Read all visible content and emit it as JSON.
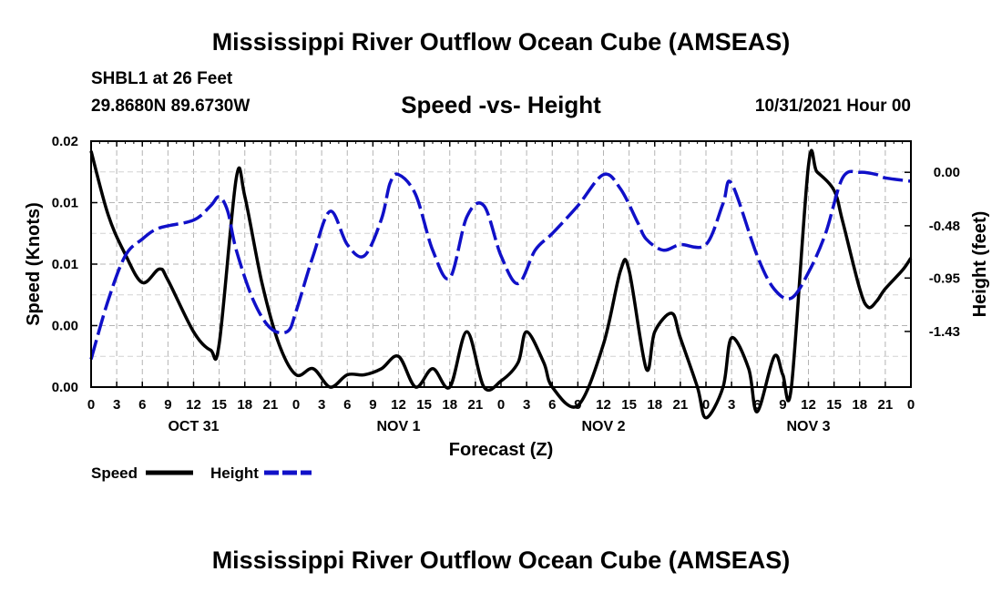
{
  "header": {
    "title": "Mississippi River Outflow Ocean Cube (AMSEAS)",
    "station": "SHBL1 at 26 Feet",
    "coords": "29.8680N  89.6730W",
    "subtitle": "Speed -vs- Height",
    "datetime": "10/31/2021 Hour 00",
    "bottom_title": "Mississippi River Outflow Ocean Cube (AMSEAS)"
  },
  "chart_data": {
    "type": "line",
    "title": "Speed -vs- Height",
    "xlabel": "Forecast (Z)",
    "ylabel": "Speed (Knots)",
    "ylabel_right": "Height (feet)",
    "x_range": [
      0,
      96
    ],
    "ylim": [
      0.0,
      0.02
    ],
    "ylim_right": [
      -1.93,
      0.28
    ],
    "x_tick_labels": [
      "0",
      "3",
      "6",
      "9",
      "12",
      "15",
      "18",
      "21",
      "0",
      "3",
      "6",
      "9",
      "12",
      "15",
      "18",
      "21",
      "0",
      "3",
      "6",
      "9",
      "12",
      "15",
      "18",
      "21",
      "0",
      "3",
      "6",
      "9",
      "12",
      "15",
      "18",
      "21",
      "0"
    ],
    "day_labels": [
      {
        "label": "OCT 31",
        "x": 12
      },
      {
        "label": "NOV 1",
        "x": 36
      },
      {
        "label": "NOV 2",
        "x": 60
      },
      {
        "label": "NOV 3",
        "x": 84
      }
    ],
    "y_left_ticks": [
      {
        "value": 0.0,
        "label": "0.00"
      },
      {
        "value": 0.005,
        "label": "0.00"
      },
      {
        "value": 0.01,
        "label": "0.01"
      },
      {
        "value": 0.015,
        "label": "0.01"
      },
      {
        "value": 0.02,
        "label": "0.02"
      }
    ],
    "y_right_ticks": [
      {
        "value": 0.0,
        "label": "0.00"
      },
      {
        "value": -0.48,
        "label": "-0.48"
      },
      {
        "value": -0.95,
        "label": "-0.95"
      },
      {
        "value": -1.43,
        "label": "-1.43"
      }
    ],
    "legend": [
      {
        "name": "Speed",
        "color": "#000000",
        "style": "solid"
      },
      {
        "name": "Height",
        "color": "#1010c8",
        "style": "dashed"
      }
    ],
    "series": [
      {
        "name": "Speed",
        "axis": "left",
        "color": "#000000",
        "x": [
          0,
          2,
          4,
          6,
          8,
          9,
          12,
          14,
          15,
          17,
          18,
          20,
          22,
          24,
          26,
          28,
          30,
          32,
          34,
          36,
          38,
          40,
          42,
          44,
          46,
          48,
          50,
          51,
          53,
          54,
          57,
          60,
          62,
          63,
          65,
          66,
          68,
          69,
          71,
          72,
          74,
          75,
          77,
          78,
          80,
          81,
          82,
          84,
          85,
          87,
          88,
          90,
          91,
          92,
          93,
          95,
          96
        ],
        "y": [
          0.0192,
          0.014,
          0.0108,
          0.0085,
          0.0096,
          0.0087,
          0.0045,
          0.003,
          0.0035,
          0.017,
          0.0155,
          0.0085,
          0.0035,
          0.001,
          0.0015,
          0.0,
          0.001,
          0.001,
          0.0015,
          0.0025,
          0.0,
          0.0015,
          0.0,
          0.0045,
          0.0,
          0.0005,
          0.002,
          0.0045,
          0.002,
          0.0,
          -0.0015,
          0.0035,
          0.0095,
          0.0095,
          0.0015,
          0.0045,
          0.006,
          0.004,
          0.0,
          -0.0025,
          0.0,
          0.004,
          0.0015,
          -0.002,
          0.0025,
          0.001,
          0.0,
          0.018,
          0.0175,
          0.016,
          0.0135,
          0.008,
          0.0065,
          0.007,
          0.008,
          0.0095,
          0.0105
        ]
      },
      {
        "name": "Height",
        "axis": "right",
        "color": "#1010c8",
        "x": [
          0,
          2,
          4,
          6,
          8,
          12,
          14,
          15,
          16,
          17,
          19,
          21,
          23,
          24,
          26,
          28,
          30,
          32,
          34,
          35,
          36,
          38,
          40,
          42,
          44,
          46,
          48,
          50,
          52,
          54,
          57,
          60,
          62,
          64,
          65,
          67,
          69,
          72,
          74,
          75,
          78,
          80,
          82,
          84,
          86,
          88,
          90,
          92,
          93,
          96
        ],
        "y": [
          -1.68,
          -1.15,
          -0.75,
          -0.6,
          -0.5,
          -0.43,
          -0.3,
          -0.22,
          -0.35,
          -0.7,
          -1.15,
          -1.4,
          -1.43,
          -1.25,
          -0.75,
          -0.35,
          -0.65,
          -0.75,
          -0.42,
          -0.1,
          -0.02,
          -0.2,
          -0.7,
          -0.95,
          -0.4,
          -0.3,
          -0.75,
          -1.0,
          -0.7,
          -0.55,
          -0.3,
          -0.02,
          -0.15,
          -0.45,
          -0.6,
          -0.7,
          -0.65,
          -0.65,
          -0.28,
          -0.1,
          -0.75,
          -1.05,
          -1.13,
          -0.9,
          -0.55,
          -0.05,
          -0.0,
          -0.02,
          -0.05,
          -0.08
        ]
      }
    ]
  }
}
